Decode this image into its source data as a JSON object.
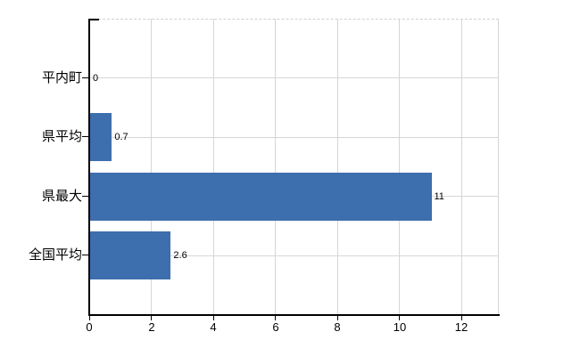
{
  "chart_data": {
    "type": "bar",
    "orientation": "horizontal",
    "title": "",
    "xlabel": "",
    "ylabel": "",
    "categories": [
      "平内町",
      "県平均",
      "県最大",
      "全国平均"
    ],
    "values": [
      0,
      0.7,
      11,
      2.6
    ],
    "value_labels": [
      "0",
      "0.7",
      "11",
      "2.6"
    ],
    "x_ticks": [
      0,
      2,
      4,
      6,
      8,
      10,
      12
    ],
    "xlim": [
      0,
      13.2
    ],
    "grid": true,
    "legend": false,
    "bar_color": "#3d6eae",
    "gridline_color": "#d6d6d6",
    "axis_color": "#000000",
    "background_color": "#ffffff"
  }
}
